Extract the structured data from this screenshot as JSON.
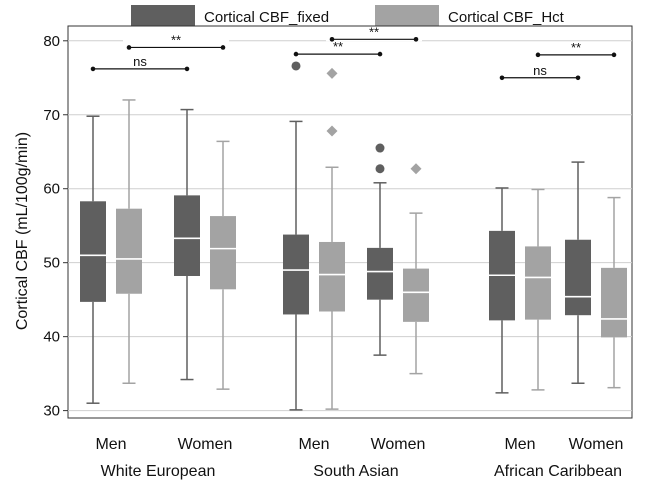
{
  "chart_data": {
    "type": "box",
    "ylabel": "Cortical CBF (mL/100g/min)",
    "ylim": [
      29,
      82
    ],
    "yticks": [
      30,
      40,
      50,
      60,
      70,
      80
    ],
    "grid": true,
    "legend": {
      "placement": "top",
      "entries": [
        {
          "name": "Cortical CBF_fixed",
          "color": "#5f5f5f"
        },
        {
          "name": "Cortical CBF_Hct",
          "color": "#a3a3a3"
        }
      ]
    },
    "groups": [
      {
        "label": "White European",
        "categories": [
          {
            "label": "Men",
            "boxes": [
              {
                "series": "Cortical CBF_fixed",
                "whisker_low": 31.0,
                "q1": 44.7,
                "median": 51.0,
                "q3": 58.3,
                "whisker_high": 69.8,
                "outliers": []
              },
              {
                "series": "Cortical CBF_Hct",
                "whisker_low": 33.7,
                "q1": 45.8,
                "median": 50.5,
                "q3": 57.3,
                "whisker_high": 72.0,
                "outliers": []
              }
            ]
          },
          {
            "label": "Women",
            "boxes": [
              {
                "series": "Cortical CBF_fixed",
                "whisker_low": 34.2,
                "q1": 48.2,
                "median": 53.3,
                "q3": 59.1,
                "whisker_high": 70.7,
                "outliers": []
              },
              {
                "series": "Cortical CBF_Hct",
                "whisker_low": 32.9,
                "q1": 46.4,
                "median": 51.9,
                "q3": 56.3,
                "whisker_high": 66.4,
                "outliers": []
              }
            ]
          }
        ]
      },
      {
        "label": "South Asian",
        "categories": [
          {
            "label": "Men",
            "boxes": [
              {
                "series": "Cortical CBF_fixed",
                "whisker_low": 30.1,
                "q1": 43.0,
                "median": 49.0,
                "q3": 53.8,
                "whisker_high": 69.1,
                "outliers": [
                  76.6
                ]
              },
              {
                "series": "Cortical CBF_Hct",
                "whisker_low": 30.2,
                "q1": 43.4,
                "median": 48.4,
                "q3": 52.8,
                "whisker_high": 62.9,
                "outliers": [
                  75.6,
                  67.8
                ]
              }
            ]
          },
          {
            "label": "Women",
            "boxes": [
              {
                "series": "Cortical CBF_fixed",
                "whisker_low": 37.5,
                "q1": 45.0,
                "median": 48.8,
                "q3": 52.0,
                "whisker_high": 60.8,
                "outliers": [
                  65.5,
                  62.7
                ]
              },
              {
                "series": "Cortical CBF_Hct",
                "whisker_low": 35.0,
                "q1": 42.0,
                "median": 46.0,
                "q3": 49.2,
                "whisker_high": 56.7,
                "outliers": [
                  62.7
                ]
              }
            ]
          }
        ]
      },
      {
        "label": "African Caribbean",
        "categories": [
          {
            "label": "Men",
            "boxes": [
              {
                "series": "Cortical CBF_fixed",
                "whisker_low": 32.4,
                "q1": 42.2,
                "median": 48.3,
                "q3": 54.3,
                "whisker_high": 60.1,
                "outliers": []
              },
              {
                "series": "Cortical CBF_Hct",
                "whisker_low": 32.8,
                "q1": 42.3,
                "median": 48.0,
                "q3": 52.2,
                "whisker_high": 59.9,
                "outliers": []
              }
            ]
          },
          {
            "label": "Women",
            "boxes": [
              {
                "series": "Cortical CBF_fixed",
                "whisker_low": 33.7,
                "q1": 42.9,
                "median": 45.4,
                "q3": 53.1,
                "whisker_high": 63.6,
                "outliers": []
              },
              {
                "series": "Cortical CBF_Hct",
                "whisker_low": 33.1,
                "q1": 39.9,
                "median": 42.4,
                "q3": 49.3,
                "whisker_high": 58.8,
                "outliers": []
              }
            ]
          }
        ]
      }
    ],
    "annotations": [
      {
        "label": "ns",
        "group": 0,
        "from": [
          0,
          0
        ],
        "to": [
          1,
          0
        ],
        "y": 76.2
      },
      {
        "label": "**",
        "group": 0,
        "from": [
          0,
          1
        ],
        "to": [
          1,
          1
        ],
        "y": 79.1
      },
      {
        "label": "**",
        "group": 1,
        "from": [
          0,
          0
        ],
        "to": [
          1,
          0
        ],
        "y": 78.2
      },
      {
        "label": "**",
        "group": 1,
        "from": [
          0,
          1
        ],
        "to": [
          1,
          1
        ],
        "y": 80.2
      },
      {
        "label": "ns",
        "group": 2,
        "from": [
          0,
          0
        ],
        "to": [
          1,
          0
        ],
        "y": 75.0
      },
      {
        "label": "**",
        "group": 2,
        "from": [
          0,
          1
        ],
        "to": [
          1,
          1
        ],
        "y": 78.1
      }
    ]
  }
}
